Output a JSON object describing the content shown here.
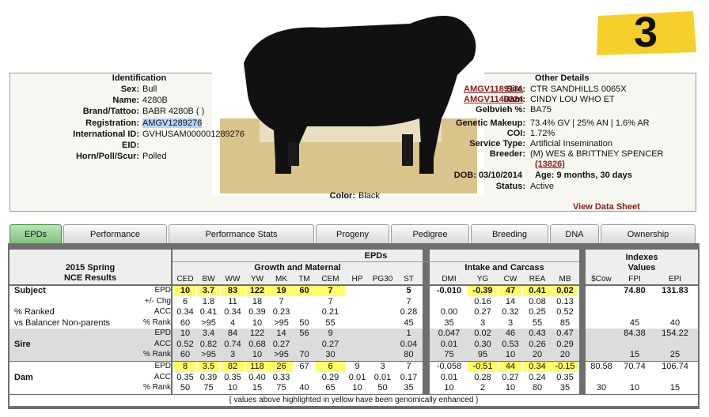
{
  "badge": "3",
  "identification": {
    "title": "Identification",
    "fields": [
      {
        "label": "Sex:",
        "value": "Bull"
      },
      {
        "label": "Name:",
        "value": "4280B"
      },
      {
        "label": "Brand/Tattoo:",
        "value": "BABR 4280B ( )"
      },
      {
        "label": "Registration:",
        "value": "AMGV1289276"
      },
      {
        "label": "International ID:",
        "value": "GVHUSAM000001289276"
      },
      {
        "label": "EID:"
      },
      {
        "label": "Horn/Poll/Scur:",
        "value": "Polled"
      }
    ],
    "color": {
      "label": "Color:",
      "value": "Black"
    }
  },
  "other_details": {
    "title": "Other Details",
    "fields": [
      {
        "label": "Sire:",
        "link": "AMGV1189131",
        "value": "CTR SANDHILLS 0065X"
      },
      {
        "label": "Dam:",
        "link": "AMGV1149224",
        "value": "CINDY LOU WHO ET"
      },
      {
        "label": "Gelbvieh %:",
        "value": "BA75"
      },
      {
        "label": "Genetic Makeup:",
        "value": "73.4% GV | 25% AN | 1.6% AR"
      },
      {
        "label": "COI:",
        "value": "1.72%"
      },
      {
        "label": "Service Type:",
        "value": "Artificial Insemination"
      },
      {
        "label": "Breeder:",
        "value": "(M) WES & BRITTNEY SPENCER",
        "link": "(13826)"
      }
    ],
    "dob": "DOB: 03/10/2014",
    "age": "Age: 9 months, 30 days",
    "status": {
      "label": "Status:",
      "value": "Active"
    },
    "data_sheet": "View Data Sheet"
  },
  "tabs": {
    "items": [
      "EPDs",
      "Performance",
      "Performance Stats",
      "Progeny",
      "Pedigree",
      "Breeding",
      "DNA",
      "Ownership"
    ],
    "active": 0
  },
  "table": {
    "title_lines": [
      "2015 Spring",
      "NCE Results"
    ],
    "epds_header": "EPDs",
    "highlight_color": "#ffff66",
    "groups": [
      {
        "label": "Growth and Maternal",
        "columns": [
          "CED",
          "BW",
          "WW",
          "YW",
          "MK",
          "TM",
          "CEM",
          "HP",
          "PG30",
          "ST"
        ]
      },
      {
        "label": "Intake and Carcass",
        "columns": [
          "DMI",
          "YG",
          "CW",
          "REA",
          "MB"
        ]
      },
      {
        "label_lines": [
          "Indexes",
          "Values"
        ],
        "columns": [
          "$Cow",
          "FPI",
          "EPI"
        ]
      }
    ],
    "sections": [
      {
        "name": "Subject",
        "background": "#ffffff",
        "rows": [
          {
            "type": "EPD",
            "bold": true,
            "highlight": [
              0,
              1,
              2,
              3,
              4,
              5,
              6,
              11,
              12,
              13,
              14
            ],
            "values": [
              "10",
              "3.7",
              "83",
              "122",
              "19",
              "60",
              "7",
              null,
              null,
              "5",
              "-0.010",
              "-0.39",
              "47",
              "0.41",
              "0.02",
              null,
              "74.80",
              "131.83"
            ]
          },
          {
            "type": "+/- Chg",
            "values": [
              "6",
              "1.8",
              "11",
              "18",
              "7",
              null,
              "7",
              null,
              null,
              "7",
              null,
              "0.16",
              "14",
              "0.08",
              "0.13",
              null,
              null,
              null
            ]
          },
          {
            "note": "% Ranked",
            "type": "ACC",
            "values": [
              "0.34",
              "0.41",
              "0.34",
              "0.39",
              "0.23",
              null,
              "0.21",
              null,
              null,
              "0.28",
              "0.00",
              "0.27",
              "0.32",
              "0.25",
              "0.52",
              null,
              null,
              null
            ]
          },
          {
            "note": "vs Balancer Non-parents",
            "type": "% Rank",
            "values": [
              "60",
              ">95",
              "4",
              "10",
              ">95",
              "50",
              "55",
              null,
              null,
              "45",
              "35",
              "3",
              "3",
              "55",
              "85",
              null,
              "45",
              "40"
            ]
          }
        ]
      },
      {
        "name": "Sire",
        "background": "#dcdcdc",
        "rows": [
          {
            "type": "EPD",
            "values": [
              "10",
              "3.4",
              "84",
              "122",
              "14",
              "56",
              "9",
              null,
              null,
              "1",
              "0.047",
              "0.02",
              "46",
              "0.43",
              "0.47",
              null,
              "84.38",
              "154.22"
            ]
          },
          {
            "type": "ACC",
            "values": [
              "0.52",
              "0.82",
              "0.74",
              "0.68",
              "0.27",
              null,
              "0.27",
              null,
              null,
              "0.04",
              "0.01",
              "0.30",
              "0.53",
              "0.26",
              "0.29",
              null,
              null,
              null
            ]
          },
          {
            "type": "% Rank",
            "values": [
              "60",
              ">95",
              "3",
              "10",
              ">95",
              "70",
              "30",
              null,
              null,
              "80",
              "75",
              "95",
              "10",
              "20",
              "20",
              null,
              "15",
              "25"
            ]
          }
        ]
      },
      {
        "name": "Dam",
        "background": "#ffffff",
        "rows": [
          {
            "type": "EPD",
            "highlight": [
              0,
              1,
              2,
              3,
              4,
              6,
              11,
              12,
              13,
              14
            ],
            "values": [
              "8",
              "3.5",
              "82",
              "118",
              "26",
              "67",
              "6",
              "9",
              "3",
              "7",
              "-0.058",
              "-0.51",
              "44",
              "0.34",
              "-0.15",
              "80.58",
              "70.74",
              "106.74"
            ]
          },
          {
            "type": "ACC",
            "values": [
              "0.35",
              "0.39",
              "0.35",
              "0.40",
              "0.33",
              null,
              "0.29",
              "0.01",
              "0.01",
              "0.17",
              "0.01",
              "0.28",
              "0.27",
              "0.24",
              "0.35",
              null,
              null,
              null
            ]
          },
          {
            "type": "% Rank",
            "values": [
              "50",
              "75",
              "10",
              "15",
              "75",
              "40",
              "65",
              "10",
              "50",
              "35",
              "10",
              "2",
              "10",
              "80",
              "35",
              "30",
              "10",
              "15"
            ]
          }
        ]
      }
    ],
    "footer": "{ values above highlighted in yellow have been genomically enhanced }"
  }
}
